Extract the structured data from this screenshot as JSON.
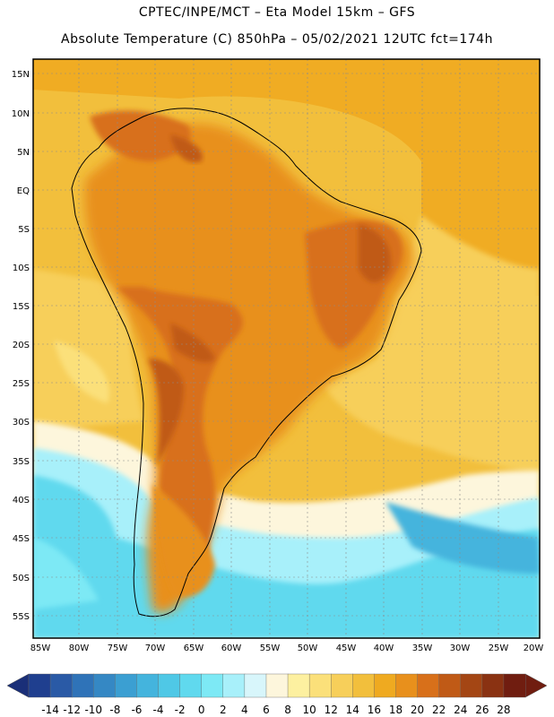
{
  "header": {
    "line1": "CPTEC/INPE/MCT –  Eta Model 15km – GFS",
    "line2": "Absolute Temperature (C) 850hPa – 05/02/2021 12UTC fct=174h"
  },
  "map": {
    "lat_labels": [
      "15N",
      "10N",
      "5N",
      "EQ",
      "5S",
      "10S",
      "15S",
      "20S",
      "25S",
      "30S",
      "35S",
      "40S",
      "45S",
      "50S",
      "55S"
    ],
    "lon_labels": [
      "85W",
      "80W",
      "75W",
      "70W",
      "65W",
      "60W",
      "55W",
      "50W",
      "45W",
      "40W",
      "35W",
      "30W",
      "25W",
      "20W"
    ]
  },
  "colorbar": {
    "labels": [
      "-14",
      "-12",
      "-10",
      "-8",
      "-6",
      "-4",
      "-2",
      "0",
      "2",
      "4",
      "6",
      "8",
      "10",
      "12",
      "14",
      "16",
      "18",
      "20",
      "22",
      "24",
      "26",
      "28"
    ],
    "colors": [
      "#1f3f8f",
      "#2a5aa6",
      "#2f73b8",
      "#3588c4",
      "#3b9fd2",
      "#44b4dd",
      "#4fc8e6",
      "#60d9ee",
      "#7de9f5",
      "#a8f0fa",
      "#d8f6fb",
      "#fdf6dc",
      "#fdf0a0",
      "#fbe07a",
      "#f7cf5a",
      "#f2bf3c",
      "#efaa20",
      "#e8901c",
      "#d8701a",
      "#c05a16",
      "#a44614",
      "#8a3212",
      "#701d10"
    ]
  }
}
